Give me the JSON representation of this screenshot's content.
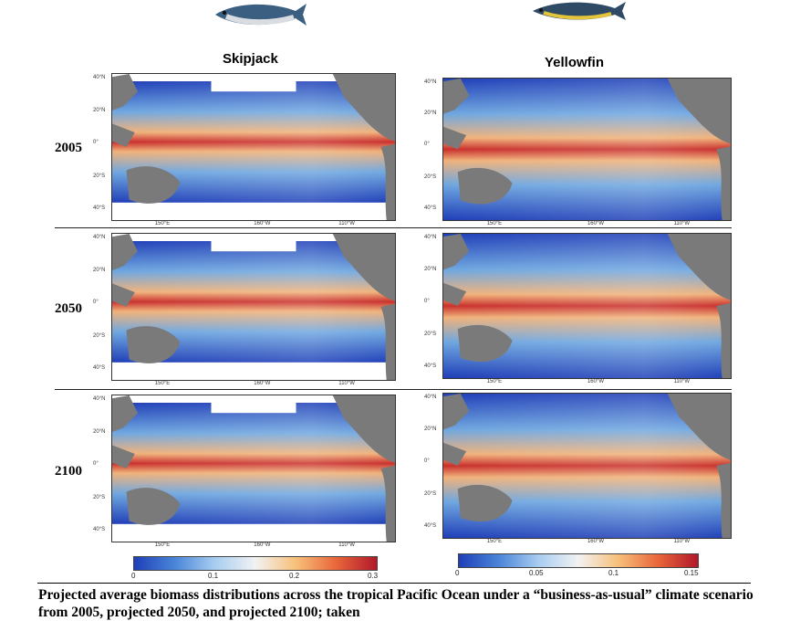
{
  "columns": [
    {
      "title": "Skipjack",
      "fish_icon": "skipjack-tuna-icon"
    },
    {
      "title": "Yellowfin",
      "fish_icon": "yellowfin-tuna-icon"
    }
  ],
  "years": [
    "2005",
    "2050",
    "2100"
  ],
  "lat_labels": [
    "40°N",
    "20°N",
    "0°",
    "20°S",
    "40°S"
  ],
  "lon_labels": [
    "150°E",
    "160°W",
    "110°W"
  ],
  "colorbars": {
    "skipjack": {
      "ticks": [
        "0",
        "0.1",
        "0.2",
        "0.3"
      ],
      "range": [
        0,
        0.3
      ]
    },
    "yellowfin": {
      "ticks": [
        "0",
        "0.05",
        "0.1",
        "0.15"
      ],
      "range": [
        0,
        0.15
      ]
    }
  },
  "caption": "Projected average biomass  distributions  across the tropical  Pacific Ocean under  a “business-as-usual” climate scenario from 2005, projected 2050, and projected 2100; taken",
  "colors": {
    "low": "#1f3fb8",
    "mid": "#f2f2f2",
    "high": "#b2182b",
    "land": "#7a7a7a"
  }
}
